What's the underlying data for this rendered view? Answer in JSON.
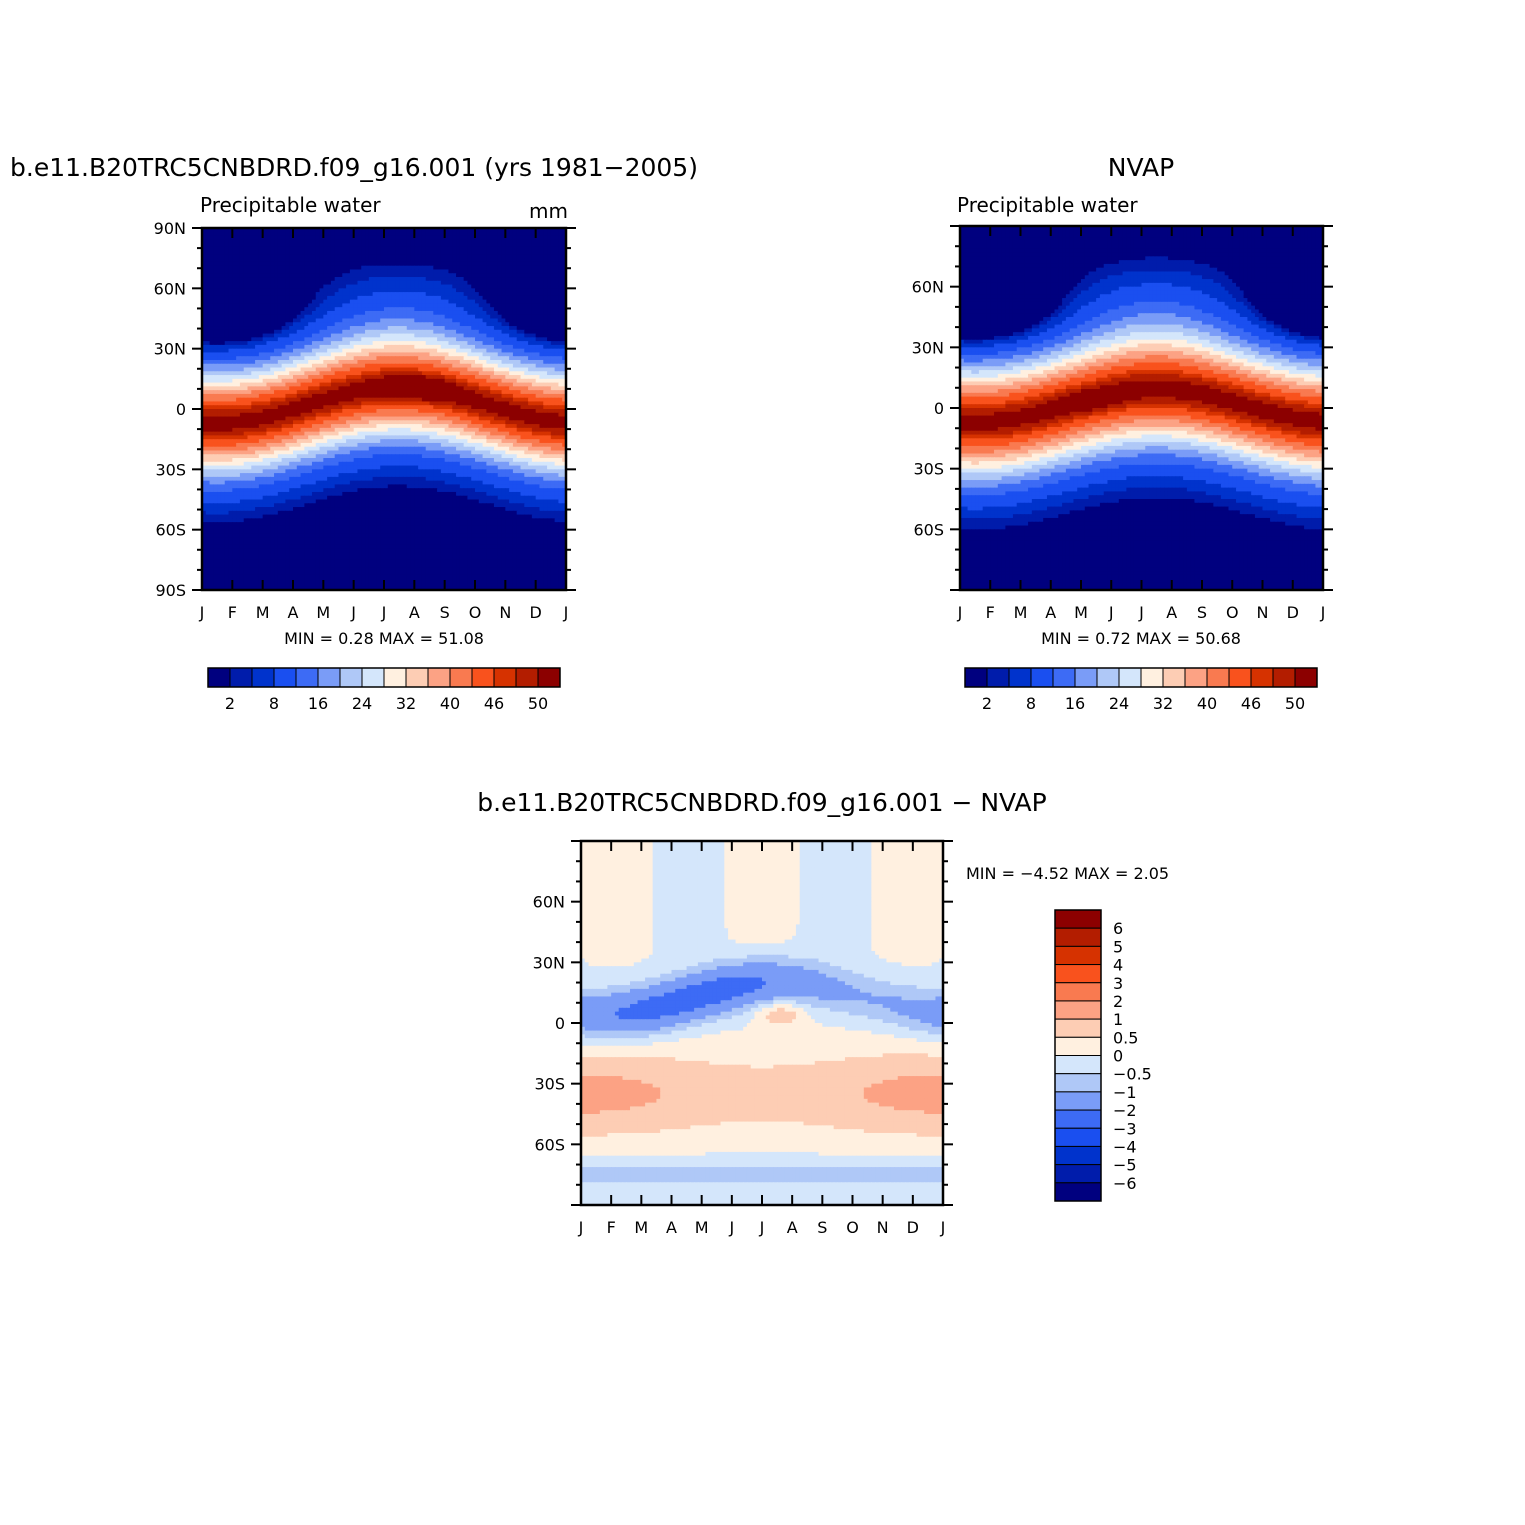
{
  "figure": {
    "colors": {
      "sequential": [
        "#00007f",
        "#001cab",
        "#0033cc",
        "#1a4ff0",
        "#3d6bf5",
        "#7a9cf7",
        "#afc8f7",
        "#d4e6fb",
        "#fff0e0",
        "#fdcdb4",
        "#fca284",
        "#f97a50",
        "#f9521d",
        "#d63200",
        "#b31d00",
        "#8c0000"
      ],
      "diverging": [
        "#00007f",
        "#001cab",
        "#0033cc",
        "#1a4ff0",
        "#3d6bf5",
        "#7a9cf7",
        "#afc8f7",
        "#d4e6fb",
        "#fff0e0",
        "#fdcdb4",
        "#fca284",
        "#f97a50",
        "#f9521d",
        "#d63200",
        "#b31d00",
        "#8c0000"
      ]
    }
  },
  "chart_data": [
    {
      "type": "heatmap",
      "title": "b.e11.B20TRC5CNBDRD.f09_g16.001 (yrs 1981−2005)",
      "subtitle": "Precipitable water",
      "units": "mm",
      "x": [
        "J",
        "F",
        "M",
        "A",
        "M",
        "J",
        "J",
        "A",
        "S",
        "O",
        "N",
        "D",
        "J"
      ],
      "ylabels": [
        "90N",
        "60N",
        "30N",
        "0",
        "30S",
        "60S",
        "90S"
      ],
      "ylim": [
        -90,
        90
      ],
      "stats": "MIN =    0.28  MAX =    51.08",
      "colorbar_labels": [
        "2",
        "8",
        "16",
        "24",
        "32",
        "40",
        "46",
        "50"
      ],
      "min": 0.28,
      "max": 51.08
    },
    {
      "type": "heatmap",
      "title": "NVAP",
      "subtitle": "Precipitable water",
      "x": [
        "J",
        "F",
        "M",
        "A",
        "M",
        "J",
        "J",
        "A",
        "S",
        "O",
        "N",
        "D",
        "J"
      ],
      "ylabels": [
        "60N",
        "30N",
        "0",
        "30S",
        "60S"
      ],
      "ylim": [
        -90,
        90
      ],
      "stats": "MIN =    0.72  MAX =    50.68",
      "colorbar_labels": [
        "2",
        "8",
        "16",
        "24",
        "32",
        "40",
        "46",
        "50"
      ],
      "min": 0.72,
      "max": 50.68
    },
    {
      "type": "heatmap",
      "title": "b.e11.B20TRC5CNBDRD.f09_g16.001  −  NVAP",
      "x": [
        "J",
        "F",
        "M",
        "A",
        "M",
        "J",
        "J",
        "A",
        "S",
        "O",
        "N",
        "D",
        "J"
      ],
      "ylabels": [
        "60N",
        "30N",
        "0",
        "30S",
        "60S"
      ],
      "ylim": [
        -90,
        90
      ],
      "stats": "MIN =   −4.52  MAX =    2.05",
      "colorbar_labels": [
        "6",
        "5",
        "4",
        "3",
        "2",
        "1",
        "0.5",
        "0",
        "−0.5",
        "−1",
        "−2",
        "−3",
        "−4",
        "−5",
        "−6"
      ],
      "min": -4.52,
      "max": 2.05
    }
  ]
}
